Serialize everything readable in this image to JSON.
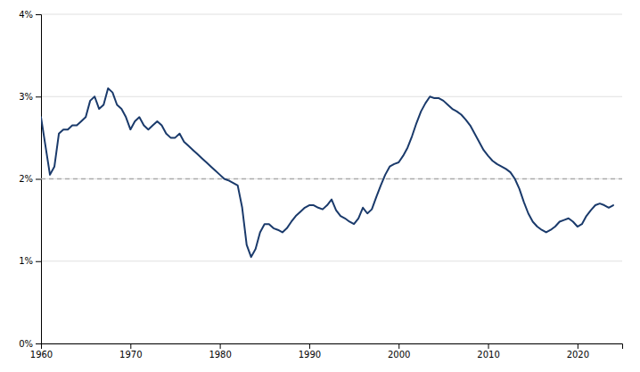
{
  "chart_data": {
    "type": "line",
    "x": [
      1960,
      1960.5,
      1961,
      1961.5,
      1962,
      1962.5,
      1963,
      1963.5,
      1964,
      1964.5,
      1965,
      1965.5,
      1966,
      1966.5,
      1967,
      1967.5,
      1968,
      1968.5,
      1969,
      1969.5,
      1970,
      1970.5,
      1971,
      1971.5,
      1972,
      1972.5,
      1973,
      1973.5,
      1974,
      1974.5,
      1975,
      1975.5,
      1976,
      1976.5,
      1977,
      1977.5,
      1978,
      1978.5,
      1979,
      1979.5,
      1980,
      1980.5,
      1981,
      1981.5,
      1982,
      1982.5,
      1983,
      1983.5,
      1984,
      1984.5,
      1985,
      1985.5,
      1986,
      1986.5,
      1987,
      1987.5,
      1988,
      1988.5,
      1989,
      1989.5,
      1990,
      1990.5,
      1991,
      1991.5,
      1992,
      1992.5,
      1993,
      1993.5,
      1994,
      1994.5,
      1995,
      1995.5,
      1996,
      1996.5,
      1997,
      1997.5,
      1998,
      1998.5,
      1999,
      1999.5,
      2000,
      2000.5,
      2001,
      2001.5,
      2002,
      2002.5,
      2003,
      2003.5,
      2004,
      2004.5,
      2005,
      2005.5,
      2006,
      2006.5,
      2007,
      2007.5,
      2008,
      2008.5,
      2009,
      2009.5,
      2010,
      2010.5,
      2011,
      2011.5,
      2012,
      2012.5,
      2013,
      2013.5,
      2014,
      2014.5,
      2015,
      2015.5,
      2016,
      2016.5,
      2017,
      2017.5,
      2018,
      2018.5,
      2019,
      2019.5,
      2020,
      2020.5,
      2021,
      2021.5,
      2022,
      2022.5,
      2023,
      2023.5,
      2024
    ],
    "values": [
      0.0275,
      0.024,
      0.0205,
      0.0215,
      0.0255,
      0.026,
      0.026,
      0.0265,
      0.0265,
      0.027,
      0.0275,
      0.0295,
      0.03,
      0.0285,
      0.029,
      0.031,
      0.0305,
      0.029,
      0.0285,
      0.0275,
      0.026,
      0.027,
      0.0275,
      0.0265,
      0.026,
      0.0265,
      0.027,
      0.0265,
      0.0255,
      0.025,
      0.025,
      0.0255,
      0.0245,
      0.024,
      0.0235,
      0.023,
      0.0225,
      0.022,
      0.0215,
      0.021,
      0.0205,
      0.02,
      0.0198,
      0.0195,
      0.0192,
      0.0165,
      0.012,
      0.0105,
      0.0115,
      0.0135,
      0.0145,
      0.0145,
      0.014,
      0.0138,
      0.0135,
      0.014,
      0.0148,
      0.0155,
      0.016,
      0.0165,
      0.0168,
      0.0168,
      0.0165,
      0.0163,
      0.0168,
      0.0175,
      0.0162,
      0.0155,
      0.0152,
      0.0148,
      0.0145,
      0.0152,
      0.0165,
      0.0158,
      0.0163,
      0.0178,
      0.0192,
      0.0205,
      0.0215,
      0.0218,
      0.022,
      0.0228,
      0.0238,
      0.0252,
      0.0268,
      0.0282,
      0.0292,
      0.03,
      0.0298,
      0.0298,
      0.0295,
      0.029,
      0.0285,
      0.0282,
      0.0278,
      0.0272,
      0.0265,
      0.0255,
      0.0245,
      0.0235,
      0.0228,
      0.0222,
      0.0218,
      0.0215,
      0.0212,
      0.0208,
      0.02,
      0.0188,
      0.0172,
      0.0158,
      0.0148,
      0.0142,
      0.0138,
      0.0135,
      0.0138,
      0.0142,
      0.0148,
      0.015,
      0.0152,
      0.0148,
      0.0142,
      0.0145,
      0.0155,
      0.0162,
      0.0168,
      0.017,
      0.0168,
      0.0165,
      0.0168
    ],
    "color": "#1a3a6b",
    "reference_line": {
      "value": 0.02,
      "color": "#aaaaaa",
      "line_style": "dashed"
    },
    "xlim": [
      1960,
      2025
    ],
    "xticks": [
      1960,
      1970,
      1980,
      1990,
      2000,
      2010,
      2020
    ],
    "ylim": [
      0,
      0.04
    ],
    "yticks": [
      {
        "value": 0,
        "label": "0%"
      },
      {
        "value": 0.01,
        "label": "1%"
      },
      {
        "value": 0.02,
        "label": "2%"
      },
      {
        "value": 0.03,
        "label": "3%"
      },
      {
        "value": 0.04,
        "label": "4%"
      }
    ],
    "grid": true
  }
}
